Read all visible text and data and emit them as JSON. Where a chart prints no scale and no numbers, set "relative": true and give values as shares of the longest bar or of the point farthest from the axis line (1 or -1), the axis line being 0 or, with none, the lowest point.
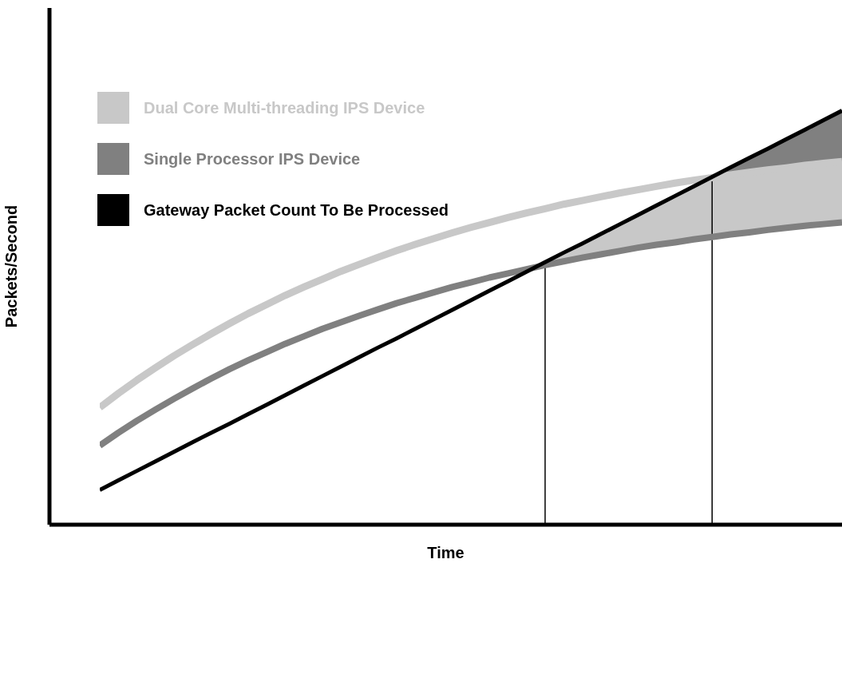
{
  "chart_data": {
    "type": "line",
    "relative": true,
    "xlabel": "Time",
    "ylabel": "Packets/Second",
    "legend": "top left",
    "marker": "none",
    "line_style": "solid",
    "grid": false,
    "categories": [
      null,
      null,
      null,
      null,
      null,
      null,
      null,
      null,
      null,
      null,
      null,
      null,
      null,
      null,
      null,
      null,
      null,
      null,
      null,
      null,
      null,
      null,
      null,
      null,
      null,
      null,
      null,
      null,
      null,
      null,
      null,
      null,
      null,
      null,
      null,
      null,
      null,
      null,
      null,
      null,
      null
    ],
    "series": [
      {
        "name": "Dual Core Multi-threading IPS Device",
        "color": "#c8c8c8",
        "values": [
          0.283,
          0.317,
          0.349,
          0.379,
          0.408,
          0.435,
          0.461,
          0.486,
          0.51,
          0.532,
          0.554,
          0.574,
          0.593,
          0.612,
          0.629,
          0.646,
          0.662,
          0.677,
          0.691,
          0.705,
          0.718,
          0.73,
          0.742,
          0.753,
          0.763,
          0.774,
          0.783,
          0.792,
          0.801,
          0.809,
          0.817,
          0.825,
          0.832,
          0.838,
          0.845,
          0.851,
          0.857,
          0.862,
          0.868,
          0.873,
          0.877
        ],
        "lower": [
          null,
          null,
          null,
          null,
          null,
          null,
          null,
          null,
          null,
          null,
          null,
          null,
          null,
          null,
          null,
          null,
          null,
          null,
          null,
          null,
          null,
          null,
          null,
          null,
          0.627,
          0.636,
          0.645,
          0.653,
          0.661,
          0.669,
          0.676,
          0.682,
          0.689,
          0.695,
          0.701,
          0.706,
          0.712,
          0.717,
          0.722,
          0.726,
          0.73
        ],
        "upper": [
          null,
          null,
          null,
          null,
          null,
          null,
          null,
          null,
          null,
          null,
          null,
          null,
          null,
          null,
          null,
          null,
          null,
          null,
          null,
          null,
          null,
          null,
          null,
          null,
          0.634,
          0.657,
          0.679,
          0.702,
          0.725,
          0.748,
          0.771,
          0.794,
          0.817,
          0.838,
          0.845,
          0.851,
          0.857,
          0.862,
          0.868,
          0.873,
          0.877
        ]
      },
      {
        "name": "Single Processor IPS Device",
        "color": "#808080",
        "values": [
          0.191,
          0.222,
          0.251,
          0.278,
          0.304,
          0.329,
          0.353,
          0.376,
          0.397,
          0.417,
          0.437,
          0.455,
          0.473,
          0.489,
          0.505,
          0.52,
          0.535,
          0.548,
          0.561,
          0.574,
          0.585,
          0.597,
          0.607,
          0.617,
          0.627,
          0.636,
          0.645,
          0.653,
          0.661,
          0.669,
          0.676,
          0.682,
          0.689,
          0.695,
          0.701,
          0.706,
          0.712,
          0.717,
          0.722,
          0.726,
          0.73
        ],
        "lower": [
          null,
          null,
          null,
          null,
          null,
          null,
          null,
          null,
          null,
          null,
          null,
          null,
          null,
          null,
          null,
          null,
          null,
          null,
          null,
          null,
          null,
          null,
          null,
          null,
          null,
          null,
          null,
          null,
          null,
          null,
          null,
          null,
          null,
          0.838,
          0.845,
          0.851,
          0.857,
          0.862,
          0.868,
          0.873,
          0.877
        ],
        "upper": [
          null,
          null,
          null,
          null,
          null,
          null,
          null,
          null,
          null,
          null,
          null,
          null,
          null,
          null,
          null,
          null,
          null,
          null,
          null,
          null,
          null,
          null,
          null,
          null,
          null,
          null,
          null,
          null,
          null,
          null,
          null,
          null,
          null,
          0.84,
          0.863,
          0.886,
          0.908,
          0.931,
          0.954,
          0.977,
          1.0
        ]
      },
      {
        "name": "Gateway Packet Count To Be Processed",
        "color": "#000000",
        "values": [
          0.084,
          0.107,
          0.13,
          0.153,
          0.176,
          0.199,
          0.222,
          0.244,
          0.267,
          0.29,
          0.313,
          0.336,
          0.359,
          0.382,
          0.405,
          0.428,
          0.45,
          0.473,
          0.496,
          0.519,
          0.542,
          0.565,
          0.588,
          0.611,
          0.634,
          0.657,
          0.679,
          0.702,
          0.725,
          0.748,
          0.771,
          0.794,
          0.817,
          0.84,
          0.863,
          0.886,
          0.908,
          0.931,
          0.954,
          0.977,
          1.0
        ]
      }
    ]
  }
}
